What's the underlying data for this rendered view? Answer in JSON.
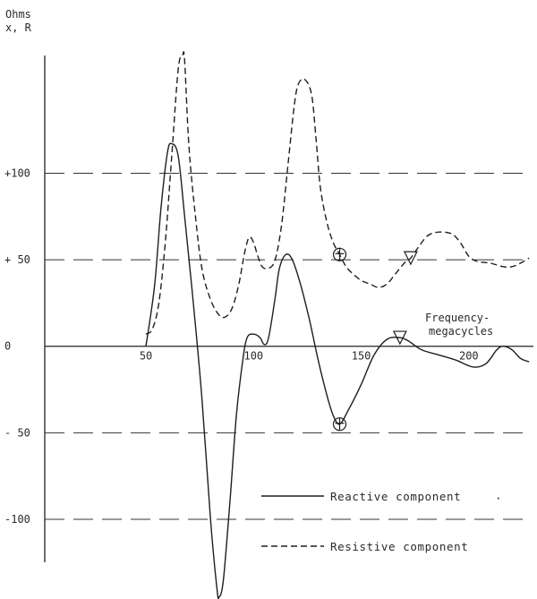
{
  "chart_data": {
    "type": "line",
    "ylabel_line1": "Ohms",
    "ylabel_line2": "x, R",
    "xlabel_line1": "Frequency-",
    "xlabel_line2": "megacycles",
    "xlim": [
      3,
      230
    ],
    "ylim": [
      -145,
      168
    ],
    "x_ticks": [
      {
        "value": 50,
        "label": "50"
      },
      {
        "value": 100,
        "label": "100"
      },
      {
        "value": 150,
        "label": "150"
      },
      {
        "value": 200,
        "label": "200"
      }
    ],
    "y_ticks": [
      {
        "value": 100,
        "label": "+100"
      },
      {
        "value": 50,
        "label": "+ 50"
      },
      {
        "value": 0,
        "label": "0"
      },
      {
        "value": -50,
        "label": "- 50"
      },
      {
        "value": -100,
        "label": "-100"
      }
    ],
    "grid_values": [
      100,
      50,
      -50,
      -100
    ],
    "series": [
      {
        "name": "Reactive component",
        "style": "solid",
        "points": [
          [
            50,
            0
          ],
          [
            54,
            35
          ],
          [
            57,
            80
          ],
          [
            60,
            112
          ],
          [
            62,
            117
          ],
          [
            65,
            110
          ],
          [
            68,
            75
          ],
          [
            72,
            25
          ],
          [
            76,
            -30
          ],
          [
            80,
            -100
          ],
          [
            83,
            -140
          ],
          [
            84,
            -145
          ],
          [
            86,
            -135
          ],
          [
            89,
            -90
          ],
          [
            92,
            -40
          ],
          [
            95,
            -8
          ],
          [
            97,
            5
          ],
          [
            100,
            7
          ],
          [
            103,
            5
          ],
          [
            105,
            1
          ],
          [
            107,
            5
          ],
          [
            110,
            28
          ],
          [
            112,
            45
          ],
          [
            115,
            53
          ],
          [
            118,
            50
          ],
          [
            122,
            35
          ],
          [
            126,
            15
          ],
          [
            130,
            -8
          ],
          [
            134,
            -28
          ],
          [
            137,
            -40
          ],
          [
            140,
            -45
          ],
          [
            144,
            -37
          ],
          [
            150,
            -22
          ],
          [
            156,
            -5
          ],
          [
            162,
            4
          ],
          [
            168,
            5
          ],
          [
            172,
            3
          ],
          [
            178,
            -2
          ],
          [
            186,
            -5
          ],
          [
            194,
            -8
          ],
          [
            202,
            -12
          ],
          [
            208,
            -10
          ],
          [
            213,
            -2
          ],
          [
            216,
            0
          ],
          [
            220,
            -2
          ],
          [
            224,
            -7
          ],
          [
            228,
            -9
          ]
        ]
      },
      {
        "name": "Resistive component",
        "style": "dashed",
        "points": [
          [
            50,
            7
          ],
          [
            53,
            10
          ],
          [
            56,
            25
          ],
          [
            59,
            60
          ],
          [
            62,
            110
          ],
          [
            65,
            160
          ],
          [
            67,
            168
          ],
          [
            68,
            165
          ],
          [
            70,
            115
          ],
          [
            73,
            75
          ],
          [
            76,
            45
          ],
          [
            80,
            27
          ],
          [
            84,
            18
          ],
          [
            87,
            17
          ],
          [
            90,
            22
          ],
          [
            93,
            35
          ],
          [
            96,
            55
          ],
          [
            98,
            63
          ],
          [
            100,
            60
          ],
          [
            102,
            52
          ],
          [
            104,
            46
          ],
          [
            107,
            45
          ],
          [
            110,
            50
          ],
          [
            113,
            70
          ],
          [
            116,
            105
          ],
          [
            119,
            140
          ],
          [
            121,
            152
          ],
          [
            124,
            154
          ],
          [
            127,
            145
          ],
          [
            129,
            120
          ],
          [
            131,
            92
          ],
          [
            134,
            72
          ],
          [
            137,
            60
          ],
          [
            140,
            53
          ],
          [
            143,
            46
          ],
          [
            146,
            42
          ],
          [
            150,
            38
          ],
          [
            154,
            36
          ],
          [
            158,
            34
          ],
          [
            162,
            36
          ],
          [
            166,
            42
          ],
          [
            170,
            48
          ],
          [
            173,
            51
          ],
          [
            177,
            58
          ],
          [
            181,
            64
          ],
          [
            186,
            66
          ],
          [
            192,
            65
          ],
          [
            196,
            60
          ],
          [
            200,
            52
          ],
          [
            204,
            49
          ],
          [
            210,
            48
          ],
          [
            216,
            46
          ],
          [
            220,
            46
          ],
          [
            224,
            48
          ],
          [
            228,
            51
          ]
        ]
      }
    ],
    "markers": [
      {
        "series": "Resistive component",
        "shape": "circle-cross",
        "x": 140,
        "y": 53
      },
      {
        "series": "Resistive component",
        "shape": "triangle-down",
        "x": 173,
        "y": 51
      },
      {
        "series": "Reactive component",
        "shape": "circle-cross",
        "x": 140,
        "y": -45
      },
      {
        "series": "Reactive component",
        "shape": "triangle-down",
        "x": 168,
        "y": 5
      }
    ],
    "legend": {
      "placement": "bottom-right",
      "entries": [
        {
          "style": "solid",
          "label": "Reactive component"
        },
        {
          "style": "dashed",
          "label": "Resistive component"
        }
      ],
      "stray_mark": "·"
    }
  }
}
